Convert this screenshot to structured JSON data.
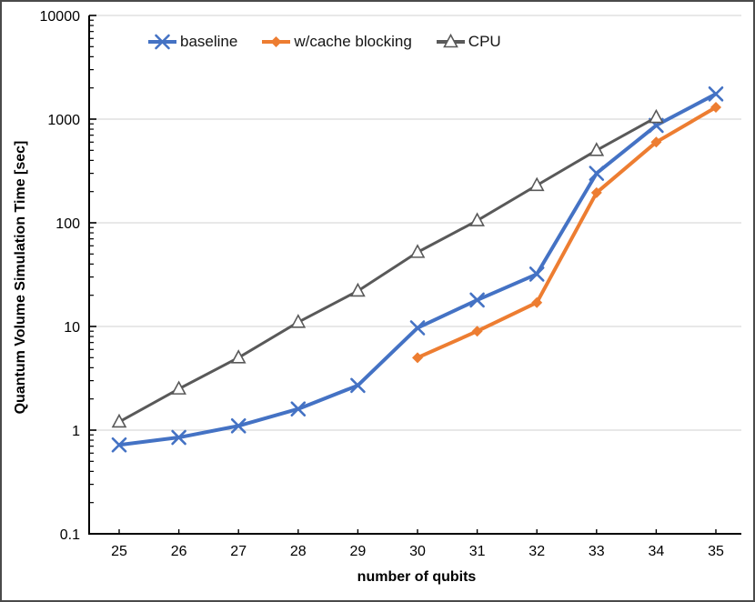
{
  "chart_data": {
    "type": "line",
    "title": "",
    "xlabel": "number of qubits",
    "ylabel": "Quantum Volume Simulation Time [sec]",
    "x_ticks": [
      25,
      26,
      27,
      28,
      29,
      30,
      31,
      32,
      33,
      34,
      35
    ],
    "x_tick_labels": [
      "25",
      "26",
      "27",
      "28",
      "29",
      "30",
      "31",
      "32",
      "33",
      "34",
      "35"
    ],
    "y_scale": "log",
    "ylim": [
      0.1,
      10000
    ],
    "y_ticks": [
      0.1,
      1,
      10,
      100,
      1000,
      10000
    ],
    "y_tick_labels": [
      "0.1",
      "1",
      "10",
      "100",
      "1000",
      "10000"
    ],
    "grid": "horizontal-major-only",
    "legend_position": "top",
    "colors": {
      "baseline": "#4472C4",
      "cache_blocking": "#ED7D31",
      "cpu": "#595959",
      "gridline": "#D9D9D9",
      "axis": "#000000"
    },
    "series": [
      {
        "name": "baseline",
        "color": "#4472C4",
        "marker": "x",
        "x": [
          25,
          26,
          27,
          28,
          29,
          30,
          31,
          32,
          33,
          34,
          35
        ],
        "y": [
          0.72,
          0.85,
          1.1,
          1.6,
          2.7,
          9.7,
          18,
          32,
          300,
          870,
          1750
        ]
      },
      {
        "name": "w/cache blocking",
        "color": "#ED7D31",
        "marker": "diamond",
        "x": [
          30,
          31,
          32,
          33,
          34,
          35
        ],
        "y": [
          5.0,
          9.0,
          17,
          195,
          600,
          1300
        ]
      },
      {
        "name": "CPU",
        "color": "#595959",
        "marker": "triangle-open",
        "x": [
          25,
          26,
          27,
          28,
          29,
          30,
          31,
          32,
          33,
          34
        ],
        "y": [
          1.2,
          2.5,
          5.0,
          11,
          22,
          52,
          105,
          230,
          500,
          1040
        ]
      }
    ]
  }
}
